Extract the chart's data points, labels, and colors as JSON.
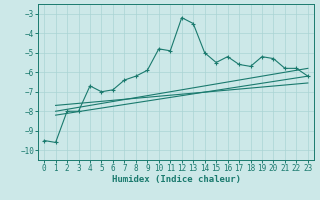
{
  "xlabel": "Humidex (Indice chaleur)",
  "background_color": "#cce8e8",
  "grid_color": "#aad4d4",
  "line_color": "#1a7a6e",
  "xlim": [
    -0.5,
    23.5
  ],
  "ylim": [
    -10.5,
    -2.5
  ],
  "yticks": [
    -10,
    -9,
    -8,
    -7,
    -6,
    -5,
    -4,
    -3
  ],
  "xticks": [
    0,
    1,
    2,
    3,
    4,
    5,
    6,
    7,
    8,
    9,
    10,
    11,
    12,
    13,
    14,
    15,
    16,
    17,
    18,
    19,
    20,
    21,
    22,
    23
  ],
  "main_x": [
    0,
    1,
    2,
    3,
    4,
    5,
    6,
    7,
    8,
    9,
    10,
    11,
    12,
    13,
    14,
    15,
    16,
    17,
    18,
    19,
    20,
    21,
    22,
    23
  ],
  "main_y": [
    -9.5,
    -9.6,
    -8.0,
    -8.0,
    -6.7,
    -7.0,
    -6.9,
    -6.4,
    -6.2,
    -5.9,
    -4.8,
    -4.9,
    -3.2,
    -3.5,
    -5.0,
    -5.5,
    -5.2,
    -5.6,
    -5.7,
    -5.2,
    -5.3,
    -5.8,
    -5.8,
    -6.2
  ],
  "line1_x": [
    1,
    23
  ],
  "line1_y": [
    -8.2,
    -6.2
  ],
  "line2_x": [
    1,
    23
  ],
  "line2_y": [
    -8.0,
    -5.8
  ],
  "line3_x": [
    1,
    23
  ],
  "line3_y": [
    -7.7,
    -6.55
  ],
  "tick_fontsize": 5.5,
  "xlabel_fontsize": 6.5
}
